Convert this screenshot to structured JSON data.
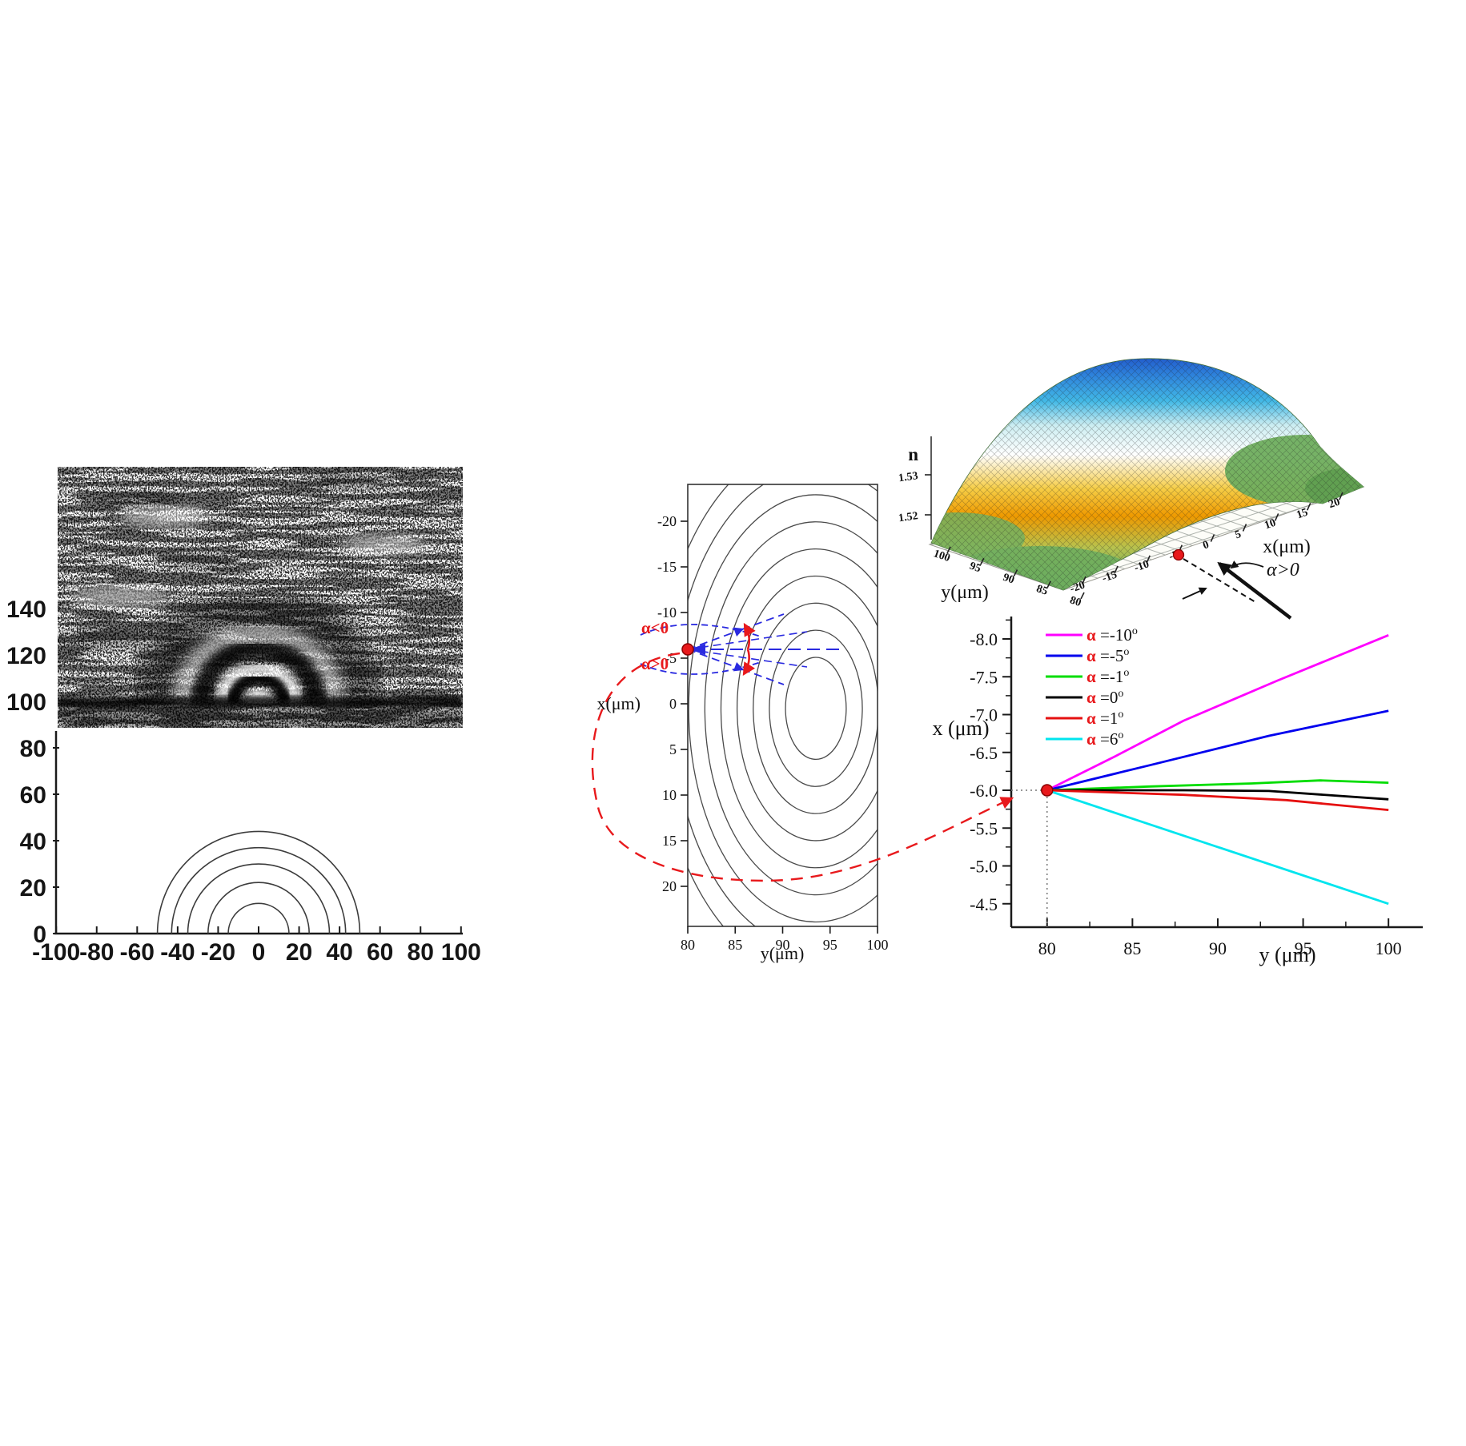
{
  "colors": {
    "annotation_red": "#e8191c",
    "annotation_blue": "#2a2ae0",
    "contour_line": "#4a4a4a",
    "axis": "#1a1a1a"
  },
  "chart_data": [
    {
      "id": "experiment_fringes",
      "type": "line",
      "title": "",
      "xlabel": "",
      "ylabel": "",
      "xlim": [
        -100,
        100
      ],
      "ylim": [
        0,
        150
      ],
      "x_ticks": [
        -100,
        -80,
        -60,
        -40,
        -20,
        0,
        20,
        40,
        60,
        80,
        100
      ],
      "y_ticks": [
        0,
        20,
        40,
        60,
        80,
        100,
        120,
        140
      ],
      "model_arcs_rx_ry": [
        [
          15,
          13
        ],
        [
          25,
          22
        ],
        [
          35,
          30
        ],
        [
          43,
          37
        ],
        [
          50,
          44
        ]
      ],
      "image_rings_center": {
        "x": 0,
        "y": 100
      }
    },
    {
      "id": "index_contours",
      "type": "contour",
      "xlabel": "y(μm)",
      "ylabel": "x(μm)",
      "x_ticks": [
        80,
        85,
        90,
        95,
        100
      ],
      "y_ticks": [
        -20,
        -15,
        -10,
        -5,
        0,
        5,
        10,
        15,
        20
      ],
      "xlim": [
        80,
        100
      ],
      "ylim": [
        -24,
        24
      ],
      "center": {
        "y": 93.5,
        "x": 0.5
      },
      "contour_rx": [
        3.2,
        4.9,
        6.6,
        8.3,
        10.0,
        11.7,
        13.4,
        15.1,
        16.8
      ],
      "aspect_ry_over_rx": 1.68,
      "source_point": {
        "y": 80,
        "x": -6
      },
      "labels": {
        "alpha_negative": "α<0",
        "alpha_positive": "α>0"
      }
    },
    {
      "id": "index_surface",
      "type": "surface",
      "zlabel": "n",
      "z_ticks": [
        "1.53",
        "1.52"
      ],
      "xlabel": "x(μm)",
      "x_ticks": [
        -20,
        -15,
        -10,
        -5,
        0,
        5,
        10,
        15,
        20
      ],
      "ylabel": "y(μm)",
      "y_ticks": [
        100,
        95,
        90,
        85,
        80
      ],
      "annotation": "α>0",
      "surface_colors": [
        "#1e50c8",
        "#42b9e6",
        "#e9f7f7",
        "#ffffff",
        "#f6cd45",
        "#ef9a00",
        "#6fae5e",
        "#4e8a4c"
      ]
    },
    {
      "id": "ray_trajectories",
      "type": "line",
      "xlabel": "y (μm)",
      "ylabel": "x (μm)",
      "x_ticks": [
        80,
        85,
        90,
        95,
        100
      ],
      "y_tick_labels": [
        "-8.0",
        "-7.5",
        "-7.0",
        "-6.5",
        "-6.0",
        "-5.5",
        "-5.0",
        "-4.5"
      ],
      "y_axis_inverted": true,
      "start_point": {
        "y": 80,
        "x": -6.0
      },
      "series": [
        {
          "legend_alpha": "α",
          "legend_text": " =-10",
          "legend_sup": "o",
          "color": "#ff00ff",
          "x": [
            80,
            84,
            88,
            93.5,
            100
          ],
          "values": [
            -6.0,
            -6.45,
            -6.92,
            -7.45,
            -8.05
          ]
        },
        {
          "legend_alpha": "α",
          "legend_text": " =-5",
          "legend_sup": "o",
          "color": "#0000ee",
          "x": [
            80,
            86,
            93,
            100
          ],
          "values": [
            -6.0,
            -6.33,
            -6.72,
            -7.05
          ]
        },
        {
          "legend_alpha": "α",
          "legend_text": " =-1",
          "legend_sup": "o",
          "color": "#00dd00",
          "x": [
            80,
            86,
            92,
            96,
            100
          ],
          "values": [
            -6.0,
            -6.05,
            -6.09,
            -6.13,
            -6.1
          ]
        },
        {
          "legend_alpha": "α",
          "legend_text": " =0",
          "legend_sup": "o",
          "color": "#000000",
          "x": [
            80,
            88,
            93,
            100
          ],
          "values": [
            -6.0,
            -6.0,
            -5.99,
            -5.88
          ]
        },
        {
          "legend_alpha": "α",
          "legend_text": " =1",
          "legend_sup": "o",
          "color": "#e51010",
          "x": [
            80,
            88,
            94,
            100
          ],
          "values": [
            -6.0,
            -5.94,
            -5.87,
            -5.74
          ]
        },
        {
          "legend_alpha": "α",
          "legend_text": " =6",
          "legend_sup": "o",
          "color": "#00e5ee",
          "x": [
            80,
            90,
            100
          ],
          "values": [
            -6.0,
            -5.25,
            -4.5
          ]
        }
      ]
    }
  ]
}
